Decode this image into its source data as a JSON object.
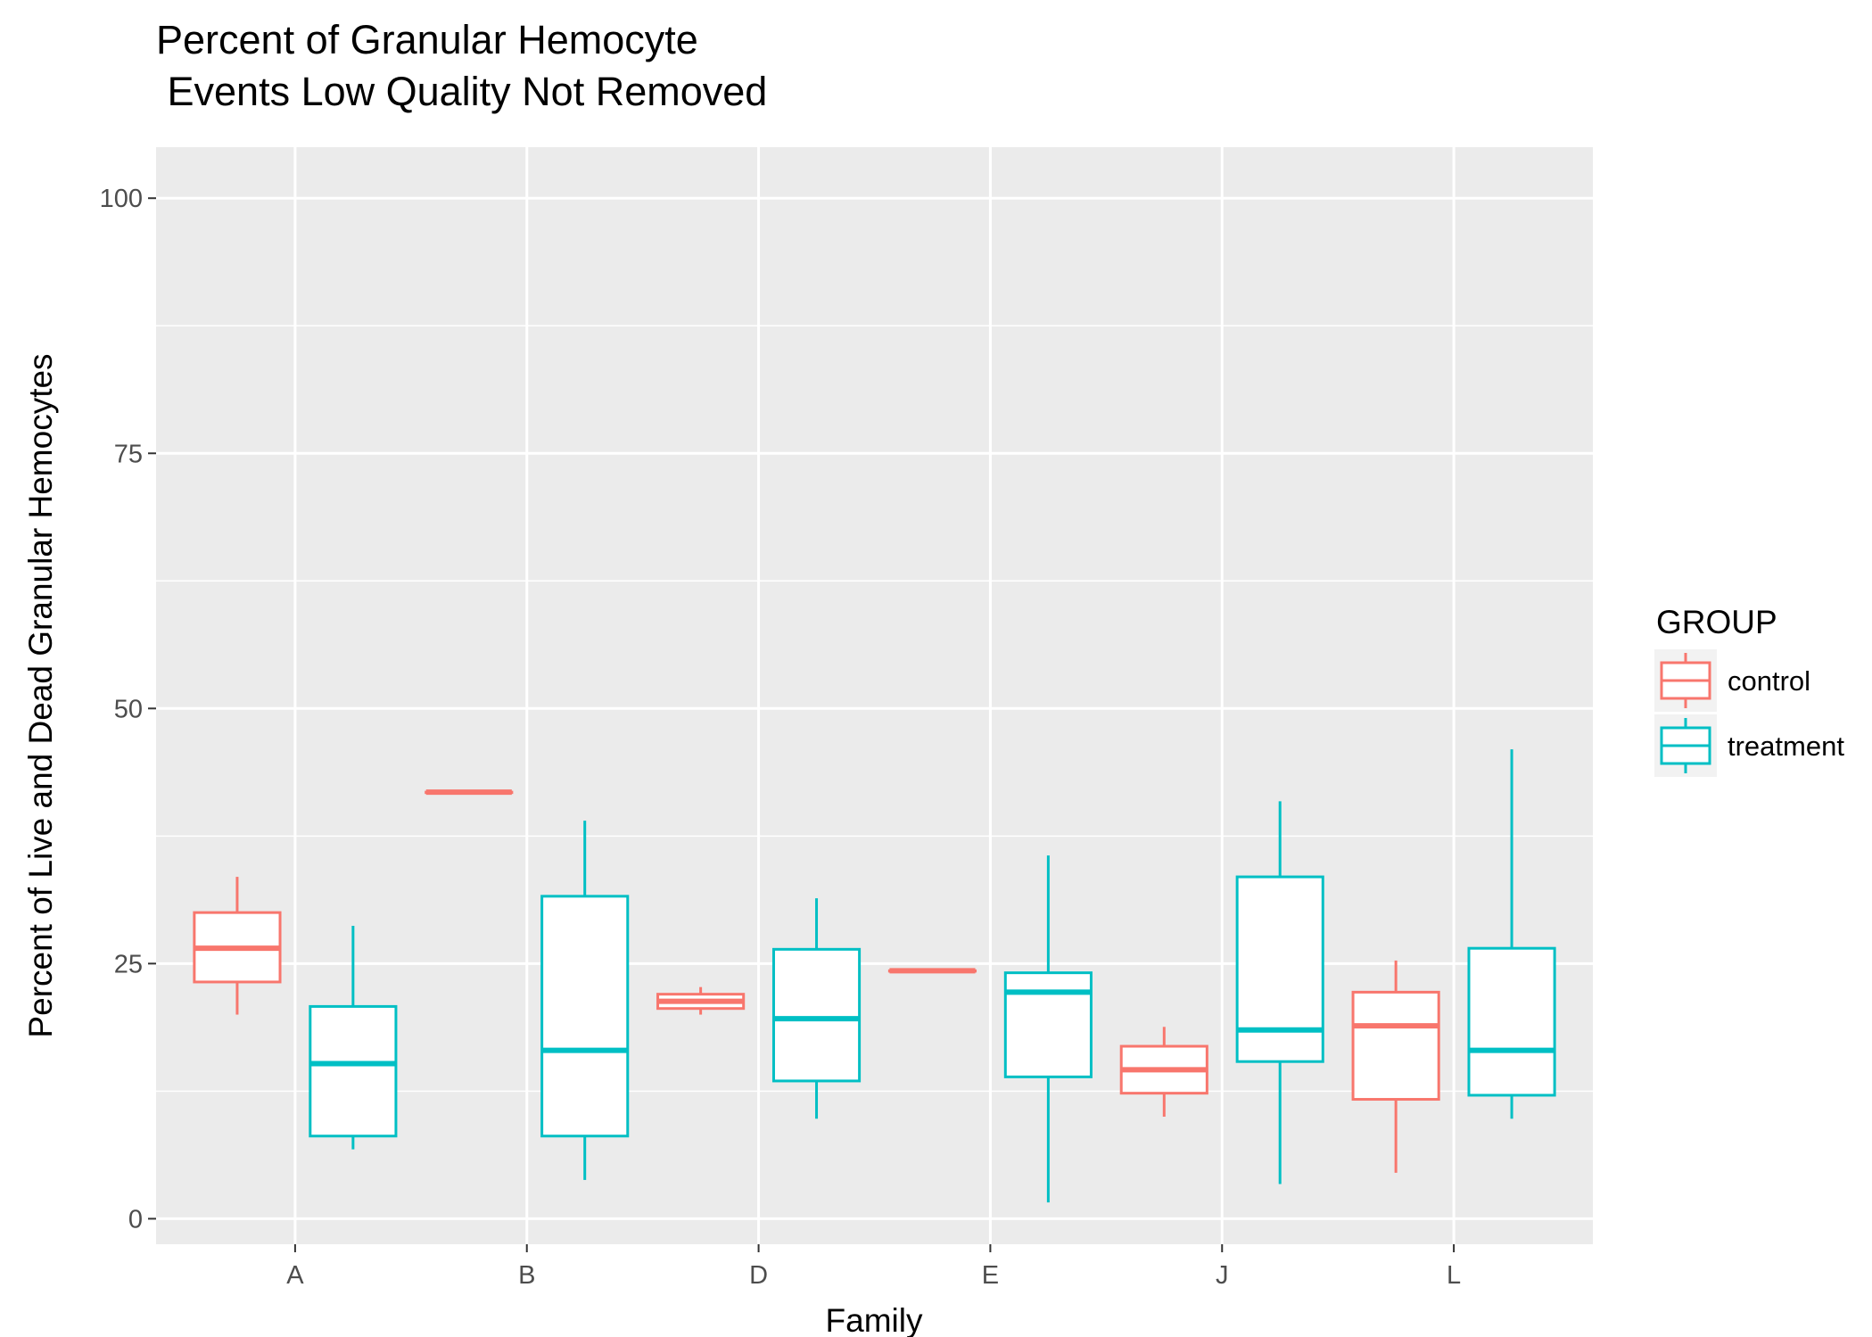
{
  "chart_data": {
    "type": "boxplot",
    "title": [
      "Percent of Granular Hemocyte",
      " Events Low Quality Not Removed"
    ],
    "xlabel": "Family",
    "ylabel": "Percent of Live and Dead Granular Hemocytes",
    "categories": [
      "A",
      "B",
      "D",
      "E",
      "J",
      "L"
    ],
    "ylim": [
      -2.5,
      105
    ],
    "yticks": [
      0,
      25,
      50,
      75,
      100
    ],
    "grid": true,
    "legend": {
      "title": "GROUP",
      "position": "right",
      "items": [
        {
          "label": "control",
          "color": "#F8766D"
        },
        {
          "label": "treatment",
          "color": "#00BFC4"
        }
      ]
    },
    "series": [
      {
        "name": "control",
        "color": "#F8766D",
        "boxes": [
          {
            "category": "A",
            "min": 20.0,
            "q1": 23.2,
            "median": 26.5,
            "q3": 30.0,
            "max": 33.5
          },
          {
            "category": "B",
            "min": 41.8,
            "q1": 41.8,
            "median": 41.8,
            "q3": 41.8,
            "max": 41.8
          },
          {
            "category": "D",
            "min": 20.0,
            "q1": 20.6,
            "median": 21.3,
            "q3": 22.0,
            "max": 22.7
          },
          {
            "category": "E",
            "min": 24.3,
            "q1": 24.3,
            "median": 24.3,
            "q3": 24.3,
            "max": 24.3
          },
          {
            "category": "J",
            "min": 10.0,
            "q1": 12.3,
            "median": 14.6,
            "q3": 16.9,
            "max": 18.8
          },
          {
            "category": "L",
            "min": 4.5,
            "q1": 11.7,
            "median": 18.9,
            "q3": 22.2,
            "max": 25.3
          }
        ]
      },
      {
        "name": "treatment",
        "color": "#00BFC4",
        "boxes": [
          {
            "category": "A",
            "min": 6.8,
            "q1": 8.1,
            "median": 15.2,
            "q3": 20.8,
            "max": 28.7
          },
          {
            "category": "B",
            "min": 3.8,
            "q1": 8.1,
            "median": 16.5,
            "q3": 31.6,
            "max": 39.0
          },
          {
            "category": "D",
            "min": 9.8,
            "q1": 13.5,
            "median": 19.6,
            "q3": 26.4,
            "max": 31.4
          },
          {
            "category": "E",
            "min": 1.6,
            "q1": 13.9,
            "median": 22.2,
            "q3": 24.1,
            "max": 35.6
          },
          {
            "category": "J",
            "min": 3.4,
            "q1": 15.4,
            "median": 18.5,
            "q3": 33.5,
            "max": 40.9
          },
          {
            "category": "L",
            "min": 9.8,
            "q1": 12.1,
            "median": 16.5,
            "q3": 26.5,
            "max": 46.0
          }
        ]
      }
    ]
  }
}
